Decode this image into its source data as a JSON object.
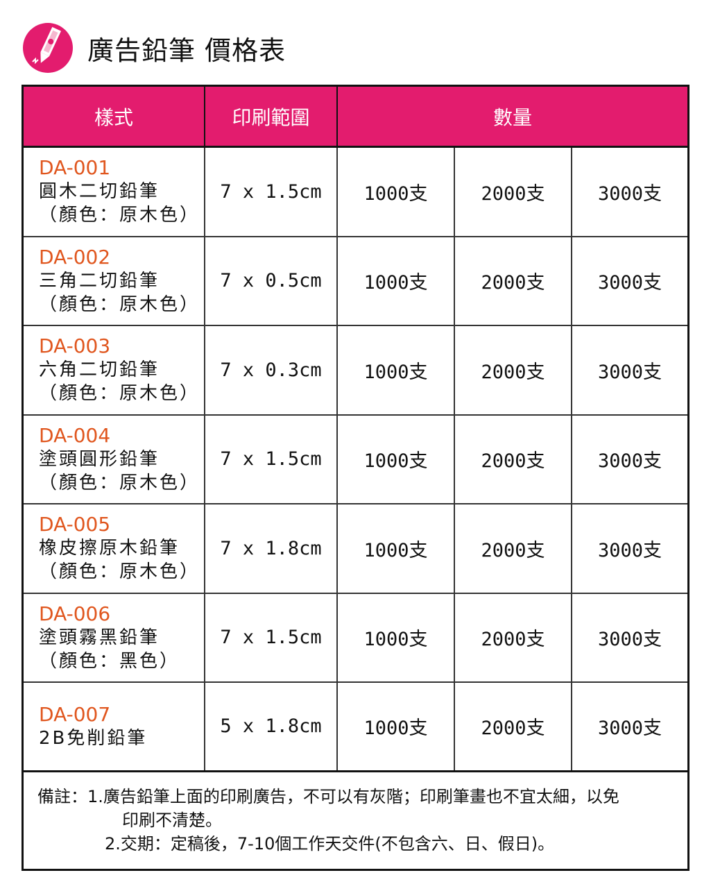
{
  "title": "廣告鉛筆 價格表",
  "logo_icon": "pencil-icon",
  "colors": {
    "accent": "#e31c6e",
    "code": "#e0561e"
  },
  "headers": {
    "style": "樣式",
    "print_area": "印刷範圍",
    "quantity": "數量"
  },
  "rows": [
    {
      "code": "DA-001",
      "name": "圓木二切鉛筆",
      "color": "（顏色：原木色）",
      "size": "7 x 1.5cm",
      "q1": "1000支",
      "q2": "2000支",
      "q3": "3000支"
    },
    {
      "code": "DA-002",
      "name": "三角二切鉛筆",
      "color": "（顏色：原木色）",
      "size": "7 x 0.5cm",
      "q1": "1000支",
      "q2": "2000支",
      "q3": "3000支"
    },
    {
      "code": "DA-003",
      "name": "六角二切鉛筆",
      "color": "（顏色：原木色）",
      "size": "7 x 0.3cm",
      "q1": "1000支",
      "q2": "2000支",
      "q3": "3000支"
    },
    {
      "code": "DA-004",
      "name": "塗頭圓形鉛筆",
      "color": "（顏色：原木色）",
      "size": "7 x 1.5cm",
      "q1": "1000支",
      "q2": "2000支",
      "q3": "3000支"
    },
    {
      "code": "DA-005",
      "name": "橡皮擦原木鉛筆",
      "color": "（顏色：原木色）",
      "size": "7 x 1.8cm",
      "q1": "1000支",
      "q2": "2000支",
      "q3": "3000支"
    },
    {
      "code": "DA-006",
      "name": "塗頭霧黑鉛筆",
      "color": "（顏色：黑色）",
      "size": "7 x 1.5cm",
      "q1": "1000支",
      "q2": "2000支",
      "q3": "3000支"
    },
    {
      "code": "DA-007",
      "name": "2B免削鉛筆",
      "color": "",
      "size": "5 x 1.8cm",
      "q1": "1000支",
      "q2": "2000支",
      "q3": "3000支"
    }
  ],
  "notes": {
    "label": "備註：",
    "line1": "1.廣告鉛筆上面的印刷廣告，不可以有灰階；印刷筆畫也不宜太細，以免",
    "line1b": "印刷不清楚。",
    "line2": "2.交期：定稿後，7-10個工作天交件(不包含六、日、假日)。"
  }
}
